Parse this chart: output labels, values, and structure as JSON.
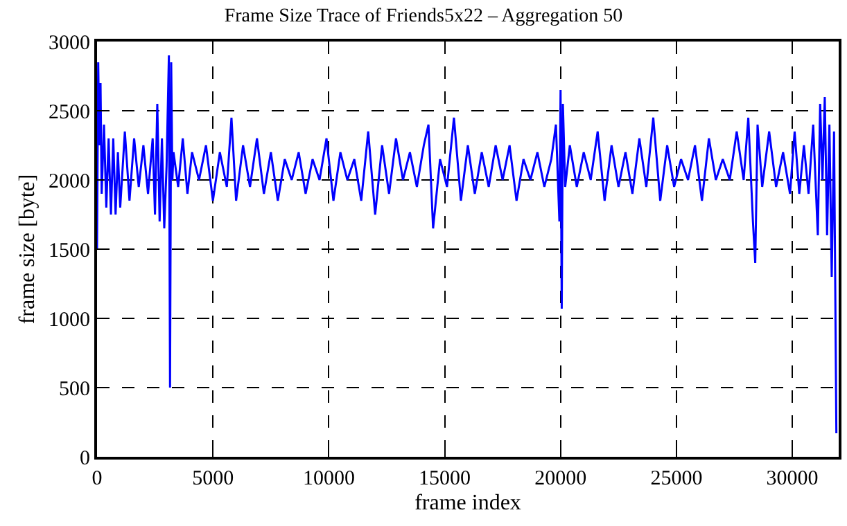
{
  "chart_data": {
    "type": "line",
    "title": "Frame Size Trace of Friends5x22 – Aggregation 50",
    "xlabel": "frame index",
    "ylabel": "frame size [byte]",
    "x": [
      0,
      50,
      100,
      150,
      200,
      300,
      400,
      500,
      600,
      700,
      800,
      900,
      1000,
      1200,
      1400,
      1600,
      1800,
      2000,
      2200,
      2400,
      2500,
      2600,
      2700,
      2800,
      2900,
      3000,
      3100,
      3150,
      3200,
      3250,
      3300,
      3500,
      3700,
      3900,
      4100,
      4400,
      4700,
      5000,
      5300,
      5600,
      5800,
      6000,
      6300,
      6600,
      6900,
      7200,
      7500,
      7800,
      8100,
      8400,
      8700,
      9000,
      9300,
      9600,
      9900,
      10200,
      10500,
      10800,
      11100,
      11400,
      11700,
      12000,
      12300,
      12600,
      12900,
      13200,
      13500,
      13800,
      14100,
      14300,
      14500,
      14800,
      15100,
      15400,
      15700,
      16000,
      16300,
      16600,
      16900,
      17200,
      17500,
      17800,
      18100,
      18400,
      18700,
      19000,
      19300,
      19600,
      19800,
      19950,
      20000,
      20050,
      20100,
      20200,
      20400,
      20700,
      21000,
      21300,
      21600,
      21900,
      22200,
      22500,
      22800,
      23100,
      23400,
      23700,
      24000,
      24300,
      24600,
      24900,
      25200,
      25500,
      25800,
      26100,
      26400,
      26700,
      27000,
      27300,
      27600,
      27900,
      28100,
      28300,
      28400,
      28500,
      28700,
      29000,
      29300,
      29600,
      29900,
      30100,
      30300,
      30500,
      30700,
      30900,
      31100,
      31200,
      31300,
      31400,
      31500,
      31600,
      31700,
      31800,
      31900
    ],
    "values": [
      1500,
      2850,
      2250,
      2700,
      1900,
      2400,
      1800,
      2300,
      1750,
      2300,
      1750,
      2200,
      1800,
      2350,
      1850,
      2300,
      1950,
      2250,
      1900,
      2300,
      1750,
      2550,
      1700,
      2300,
      1650,
      2100,
      2900,
      500,
      2850,
      2000,
      2200,
      1950,
      2300,
      1900,
      2200,
      2000,
      2250,
      1850,
      2200,
      1950,
      2450,
      1850,
      2250,
      1950,
      2300,
      1900,
      2200,
      1850,
      2150,
      2000,
      2200,
      1900,
      2150,
      2000,
      2300,
      1850,
      2200,
      2000,
      2150,
      1850,
      2350,
      1750,
      2250,
      1900,
      2300,
      2000,
      2200,
      1950,
      2250,
      2400,
      1650,
      2150,
      1950,
      2450,
      1850,
      2250,
      1900,
      2200,
      1950,
      2250,
      2000,
      2250,
      1850,
      2150,
      2000,
      2200,
      1950,
      2150,
      2400,
      1700,
      2650,
      1070,
      2550,
      1950,
      2250,
      1950,
      2200,
      2000,
      2350,
      1850,
      2250,
      1950,
      2200,
      1900,
      2300,
      1950,
      2450,
      1850,
      2250,
      1950,
      2150,
      2000,
      2250,
      1850,
      2300,
      2000,
      2150,
      2000,
      2350,
      2000,
      2450,
      1700,
      1400,
      2400,
      1950,
      2350,
      1950,
      2200,
      1900,
      2350,
      1900,
      2250,
      1900,
      2400,
      1600,
      2550,
      2000,
      2600,
      1600,
      2400,
      1300,
      2350,
      170
    ],
    "color": "#0000ff",
    "xlim": [
      0,
      32000
    ],
    "ylim": [
      0,
      3000
    ],
    "xticks": [
      0,
      5000,
      10000,
      15000,
      20000,
      25000,
      30000
    ],
    "yticks": [
      0,
      500,
      1000,
      1500,
      2000,
      2500,
      3000
    ],
    "grid": true,
    "line_style": "solid",
    "marker": "none"
  }
}
